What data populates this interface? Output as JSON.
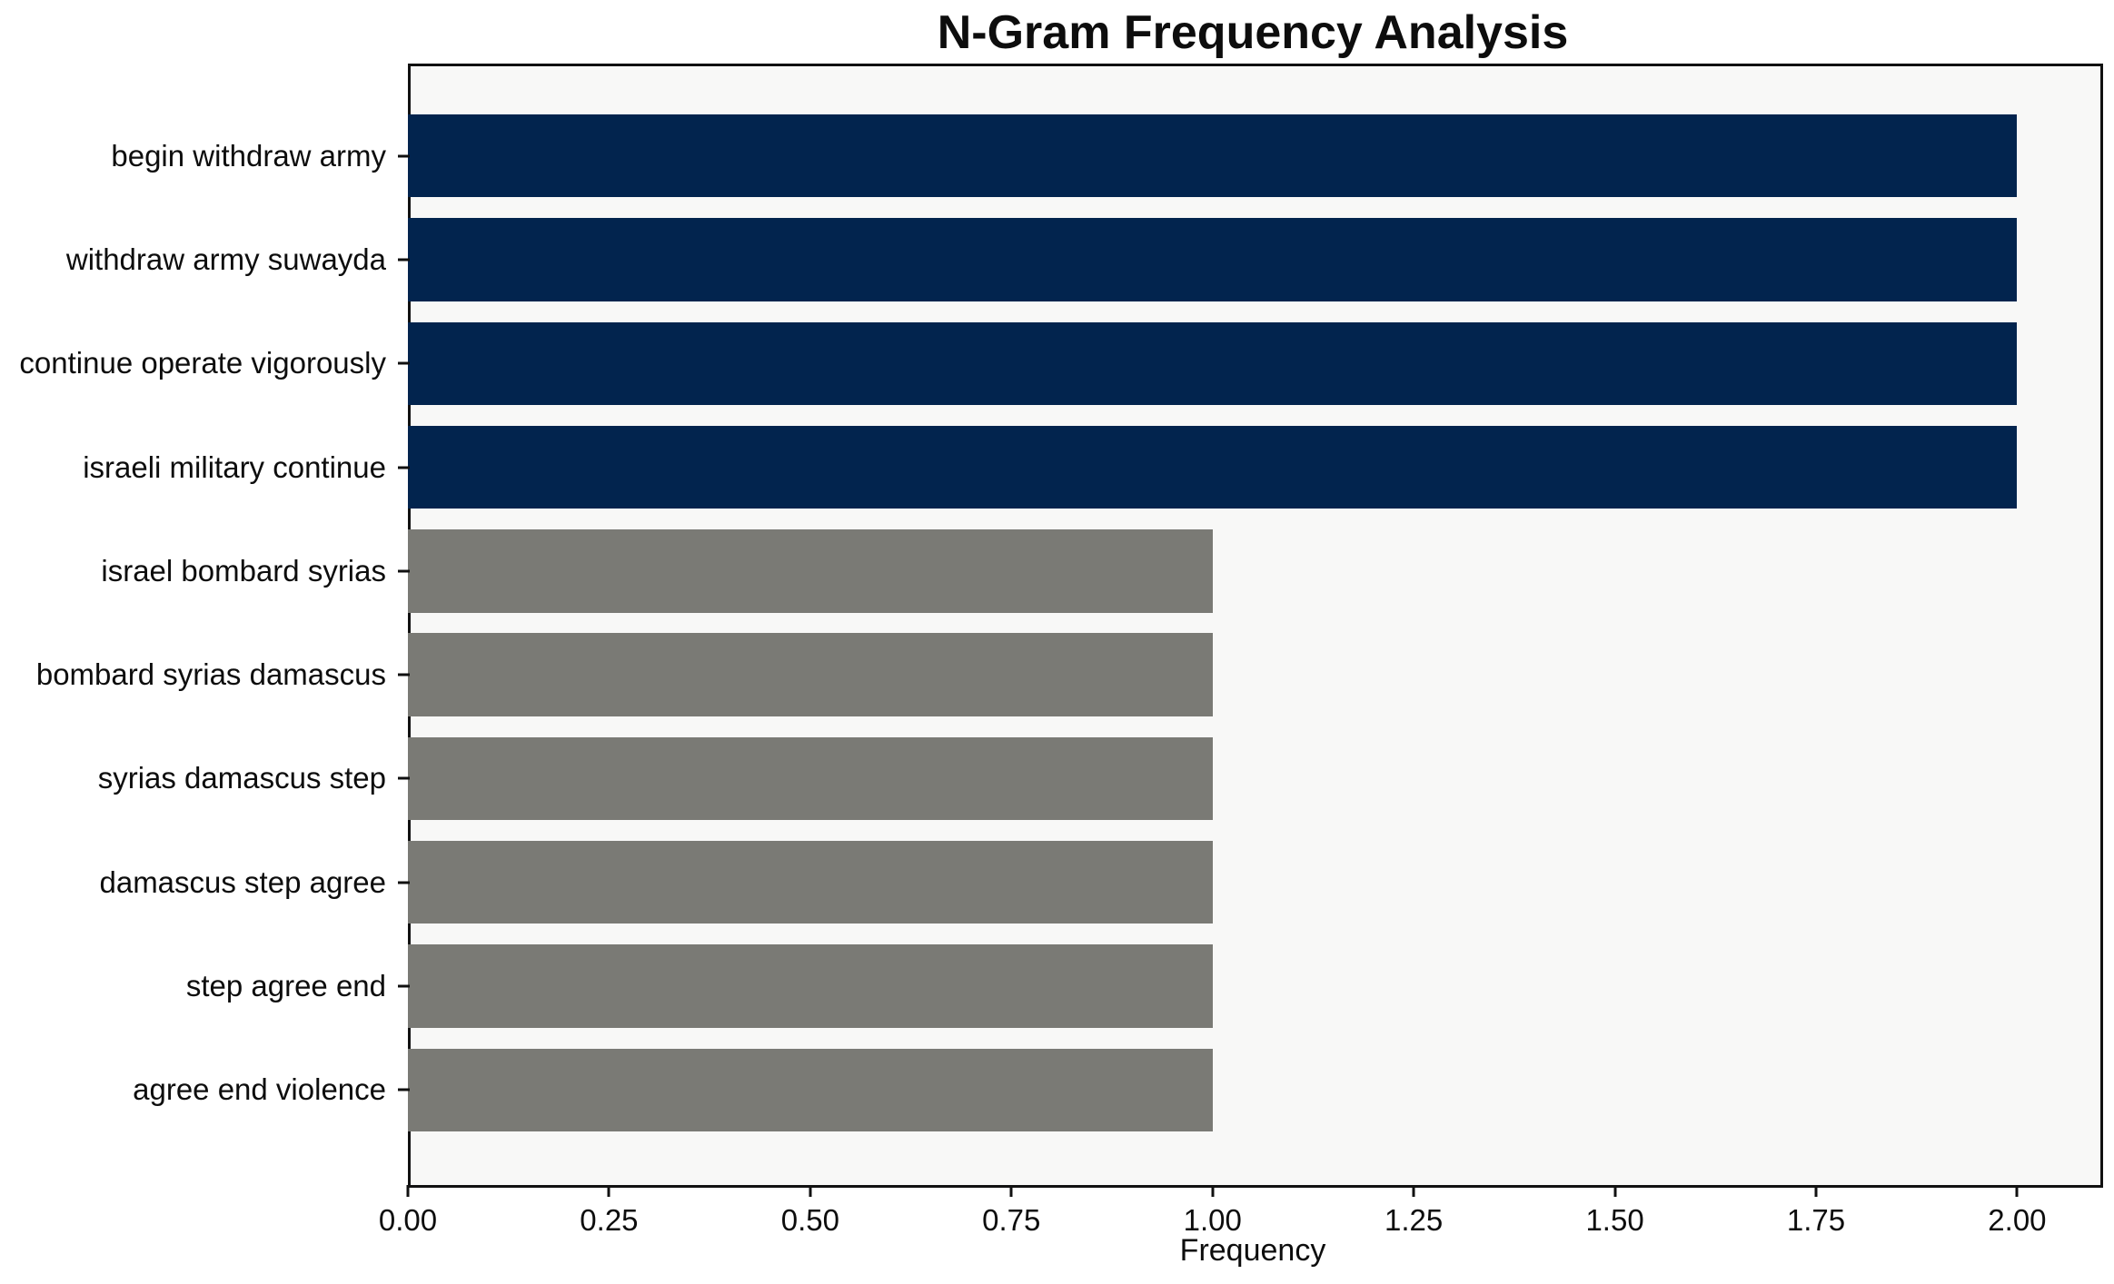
{
  "chart_data": {
    "type": "bar",
    "orientation": "horizontal",
    "title": "N-Gram Frequency Analysis",
    "xlabel": "Frequency",
    "ylabel": "",
    "categories": [
      "begin withdraw army",
      "withdraw army suwayda",
      "continue operate vigorously",
      "israeli military continue",
      "israel bombard syrias",
      "bombard syrias damascus",
      "syrias damascus step",
      "damascus step agree",
      "step agree end",
      "agree end violence"
    ],
    "values": [
      2,
      2,
      2,
      2,
      1,
      1,
      1,
      1,
      1,
      1
    ],
    "bar_colors": [
      "#02244e",
      "#02244e",
      "#02244e",
      "#02244e",
      "#7a7a75",
      "#7a7a75",
      "#7a7a75",
      "#7a7a75",
      "#7a7a75",
      "#7a7a75"
    ],
    "xlim": [
      0,
      2.1
    ],
    "xticks": [
      0,
      0.25,
      0.5,
      0.75,
      1.0,
      1.25,
      1.5,
      1.75,
      2.0
    ],
    "xtick_labels": [
      "0.00",
      "0.25",
      "0.50",
      "0.75",
      "1.00",
      "1.25",
      "1.50",
      "1.75",
      "2.00"
    ],
    "grid": false,
    "legend": null,
    "colors": {
      "high_frequency_bar": "#02244e",
      "low_frequency_bar": "#7a7a75",
      "plot_background": "#f8f8f7",
      "spine": "#111111",
      "text": "#0d0d0d"
    }
  }
}
